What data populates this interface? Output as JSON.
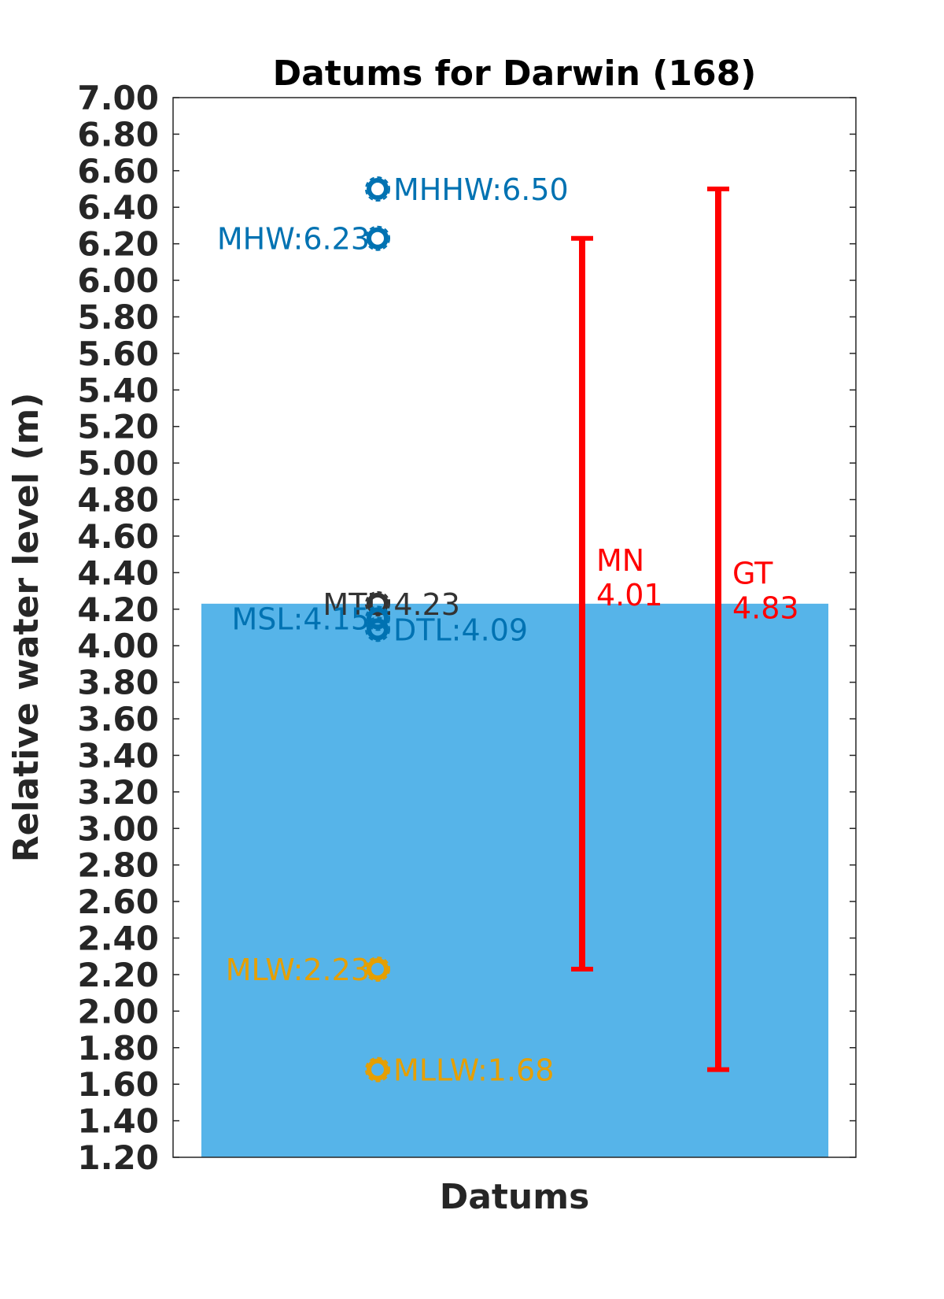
{
  "chart_data": {
    "type": "bar",
    "title": "Datums for Darwin (168)",
    "xlabel": "Datums",
    "ylabel": "Relative water level (m)",
    "ylim": [
      1.2,
      7.0
    ],
    "ytick_step": 0.2,
    "yticks": [
      "1.20",
      "1.40",
      "1.60",
      "1.80",
      "2.00",
      "2.20",
      "2.40",
      "2.60",
      "2.80",
      "3.00",
      "3.20",
      "3.40",
      "3.60",
      "3.80",
      "4.00",
      "4.20",
      "4.40",
      "4.60",
      "4.80",
      "5.00",
      "5.20",
      "5.40",
      "5.60",
      "5.80",
      "6.00",
      "6.20",
      "6.40",
      "6.60",
      "6.80",
      "7.00"
    ],
    "grid": false,
    "bar": {
      "value": 4.23,
      "color": "#56b4e9"
    },
    "datums": [
      {
        "name": "MHHW",
        "value": 6.5,
        "label": "MHHW:6.50",
        "side": "right",
        "color": "#0072b2"
      },
      {
        "name": "MHW",
        "value": 6.23,
        "label": "MHW:6.23",
        "side": "left",
        "color": "#0072b2"
      },
      {
        "name": "MTL",
        "value": 4.23,
        "label": "MTL:4.23",
        "side": "left",
        "color": "#333333"
      },
      {
        "name": "MSL",
        "value": 4.15,
        "label": "MSL:4.15",
        "side": "left",
        "color": "#0072b2"
      },
      {
        "name": "DTL",
        "value": 4.09,
        "label": "DTL:4.09",
        "side": "right",
        "color": "#0072b2"
      },
      {
        "name": "MLW",
        "value": 2.23,
        "label": "MLW:2.23",
        "side": "left",
        "color": "#e69f00"
      },
      {
        "name": "MLLW",
        "value": 1.68,
        "label": "MLLW:1.68",
        "side": "right",
        "color": "#e69f00"
      }
    ],
    "ranges": [
      {
        "name": "MN",
        "value": 4.01,
        "label_lines": [
          "MN",
          "4.01"
        ],
        "low": 2.23,
        "high": 6.23,
        "color": "#ff0000"
      },
      {
        "name": "GT",
        "value": 4.83,
        "label_lines": [
          "GT",
          "4.83"
        ],
        "low": 1.68,
        "high": 6.5,
        "color": "#ff0000"
      }
    ]
  }
}
